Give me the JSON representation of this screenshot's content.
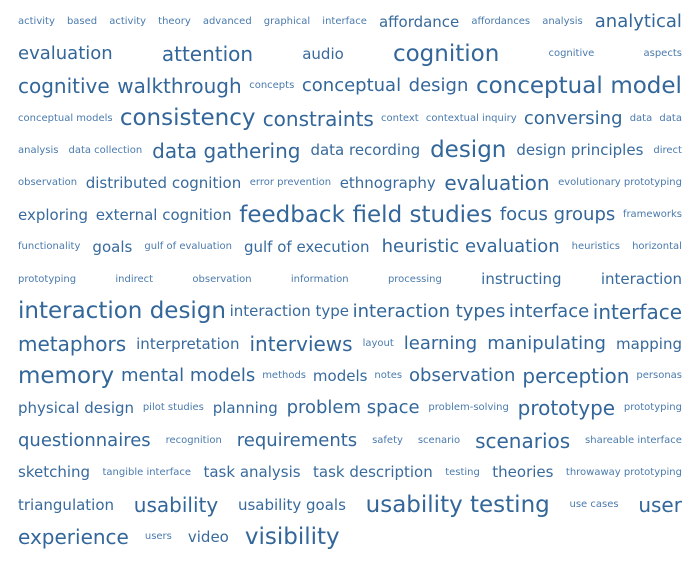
{
  "tag_lines": [
    [
      {
        "text": "activity",
        "size": 1
      },
      {
        "text": "based",
        "size": 1
      },
      {
        "text": "activity",
        "size": 1
      },
      {
        "text": "theory",
        "size": 1
      },
      {
        "text": "advanced",
        "size": 1
      },
      {
        "text": "graphical",
        "size": 1
      },
      {
        "text": "interface",
        "size": 1
      },
      {
        "text": "affordance",
        "size": 3
      },
      {
        "text": "affordances",
        "size": 1
      },
      {
        "text": "analysis",
        "size": 1
      },
      {
        "text": "analytical",
        "size": 4
      }
    ],
    [
      {
        "text": "evaluation",
        "size": 4
      },
      {
        "text": "attention",
        "size": 5
      },
      {
        "text": "audio",
        "size": 3
      },
      {
        "text": "cognition",
        "size": 6
      },
      {
        "text": "cognitive",
        "size": 1
      },
      {
        "text": "aspects",
        "size": 1
      }
    ],
    [
      {
        "text": "cognitive",
        "size": 5
      },
      {
        "text": "walkthrough",
        "size": 5
      },
      {
        "text": "concepts",
        "size": 1
      },
      {
        "text": "conceptual",
        "size": 4
      },
      {
        "text": "design",
        "size": 4
      },
      {
        "text": "conceptual",
        "size": 6
      },
      {
        "text": "model",
        "size": 6
      }
    ],
    [
      {
        "text": "conceptual models",
        "size": 1
      },
      {
        "text": "consistency",
        "size": 6
      },
      {
        "text": "constraints",
        "size": 5
      },
      {
        "text": "context",
        "size": 1
      },
      {
        "text": "contextual inquiry",
        "size": 1
      },
      {
        "text": "conversing",
        "size": 4
      },
      {
        "text": "data",
        "size": 1
      },
      {
        "text": "data",
        "size": 1
      }
    ],
    [
      {
        "text": "analysis",
        "size": 1
      },
      {
        "text": "data collection",
        "size": 1
      },
      {
        "text": "data gathering",
        "size": 5
      },
      {
        "text": "data recording",
        "size": 3
      },
      {
        "text": "design",
        "size": 6
      },
      {
        "text": "design principles",
        "size": 3
      },
      {
        "text": "direct",
        "size": 1
      }
    ],
    [
      {
        "text": "observation",
        "size": 1
      },
      {
        "text": "distributed cognition",
        "size": 3
      },
      {
        "text": "error prevention",
        "size": 1
      },
      {
        "text": "ethnography",
        "size": 3
      },
      {
        "text": "evaluation",
        "size": 5
      },
      {
        "text": "evolutionary prototyping",
        "size": 1
      }
    ],
    [
      {
        "text": "exploring",
        "size": 3
      },
      {
        "text": "external cognition",
        "size": 3
      },
      {
        "text": "feedback",
        "size": 6
      },
      {
        "text": "field studies",
        "size": 6
      },
      {
        "text": "focus groups",
        "size": 4
      },
      {
        "text": "frameworks",
        "size": 1
      }
    ],
    [
      {
        "text": "functionality",
        "size": 1
      },
      {
        "text": "goals",
        "size": 3
      },
      {
        "text": "gulf of evaluation",
        "size": 1
      },
      {
        "text": "gulf of execution",
        "size": 3
      },
      {
        "text": "heuristic evaluation",
        "size": 4
      },
      {
        "text": "heuristics",
        "size": 1
      },
      {
        "text": "horizontal",
        "size": 1
      }
    ],
    [
      {
        "text": "prototyping",
        "size": 1
      },
      {
        "text": "indirect",
        "size": 1
      },
      {
        "text": "observation",
        "size": 1
      },
      {
        "text": "information",
        "size": 1
      },
      {
        "text": "processing",
        "size": 1
      },
      {
        "text": "instructing",
        "size": 3
      },
      {
        "text": "interaction",
        "size": 3
      }
    ],
    [
      {
        "text": "interaction design",
        "size": 6
      },
      {
        "text": "interaction type",
        "size": 3
      },
      {
        "text": "interaction types",
        "size": 4
      },
      {
        "text": "interface",
        "size": 4
      },
      {
        "text": "interface",
        "size": 5
      }
    ],
    [
      {
        "text": "metaphors",
        "size": 5
      },
      {
        "text": "interpretation",
        "size": 3
      },
      {
        "text": "interviews",
        "size": 5
      },
      {
        "text": "layout",
        "size": 1
      },
      {
        "text": "learning",
        "size": 4
      },
      {
        "text": "manipulating",
        "size": 4
      },
      {
        "text": "mapping",
        "size": 3
      }
    ],
    [
      {
        "text": "memory",
        "size": 6
      },
      {
        "text": "mental models",
        "size": 4
      },
      {
        "text": "methods",
        "size": 1
      },
      {
        "text": "models",
        "size": 3
      },
      {
        "text": "notes",
        "size": 1
      },
      {
        "text": "observation",
        "size": 4
      },
      {
        "text": "perception",
        "size": 5
      },
      {
        "text": "personas",
        "size": 1
      }
    ],
    [
      {
        "text": "physical design",
        "size": 3
      },
      {
        "text": "pilot studies",
        "size": 1
      },
      {
        "text": "planning",
        "size": 3
      },
      {
        "text": "problem space",
        "size": 4
      },
      {
        "text": "problem-solving",
        "size": 1
      },
      {
        "text": "prototype",
        "size": 5
      },
      {
        "text": "prototyping",
        "size": 1
      }
    ],
    [
      {
        "text": "questionnaires",
        "size": 4
      },
      {
        "text": "recognition",
        "size": 1
      },
      {
        "text": "requirements",
        "size": 4
      },
      {
        "text": "safety",
        "size": 1
      },
      {
        "text": "scenario",
        "size": 1
      },
      {
        "text": "scenarios",
        "size": 5
      },
      {
        "text": "shareable interface",
        "size": 1
      }
    ],
    [
      {
        "text": "sketching",
        "size": 3
      },
      {
        "text": "tangible interface",
        "size": 1
      },
      {
        "text": "task analysis",
        "size": 3
      },
      {
        "text": "task description",
        "size": 3
      },
      {
        "text": "testing",
        "size": 1
      },
      {
        "text": "theories",
        "size": 3
      },
      {
        "text": "throwaway prototyping",
        "size": 1
      }
    ],
    [
      {
        "text": "triangulation",
        "size": 3
      },
      {
        "text": "usability",
        "size": 5
      },
      {
        "text": "usability goals",
        "size": 3
      },
      {
        "text": "usability testing",
        "size": 6
      },
      {
        "text": "use cases",
        "size": 1
      },
      {
        "text": "user",
        "size": 5
      }
    ],
    [
      {
        "text": "experience",
        "size": 5
      },
      {
        "text": "users",
        "size": 1
      },
      {
        "text": "video",
        "size": 3
      },
      {
        "text": "visibility",
        "size": 6
      }
    ]
  ],
  "style": {
    "tag_color": "#336699"
  }
}
